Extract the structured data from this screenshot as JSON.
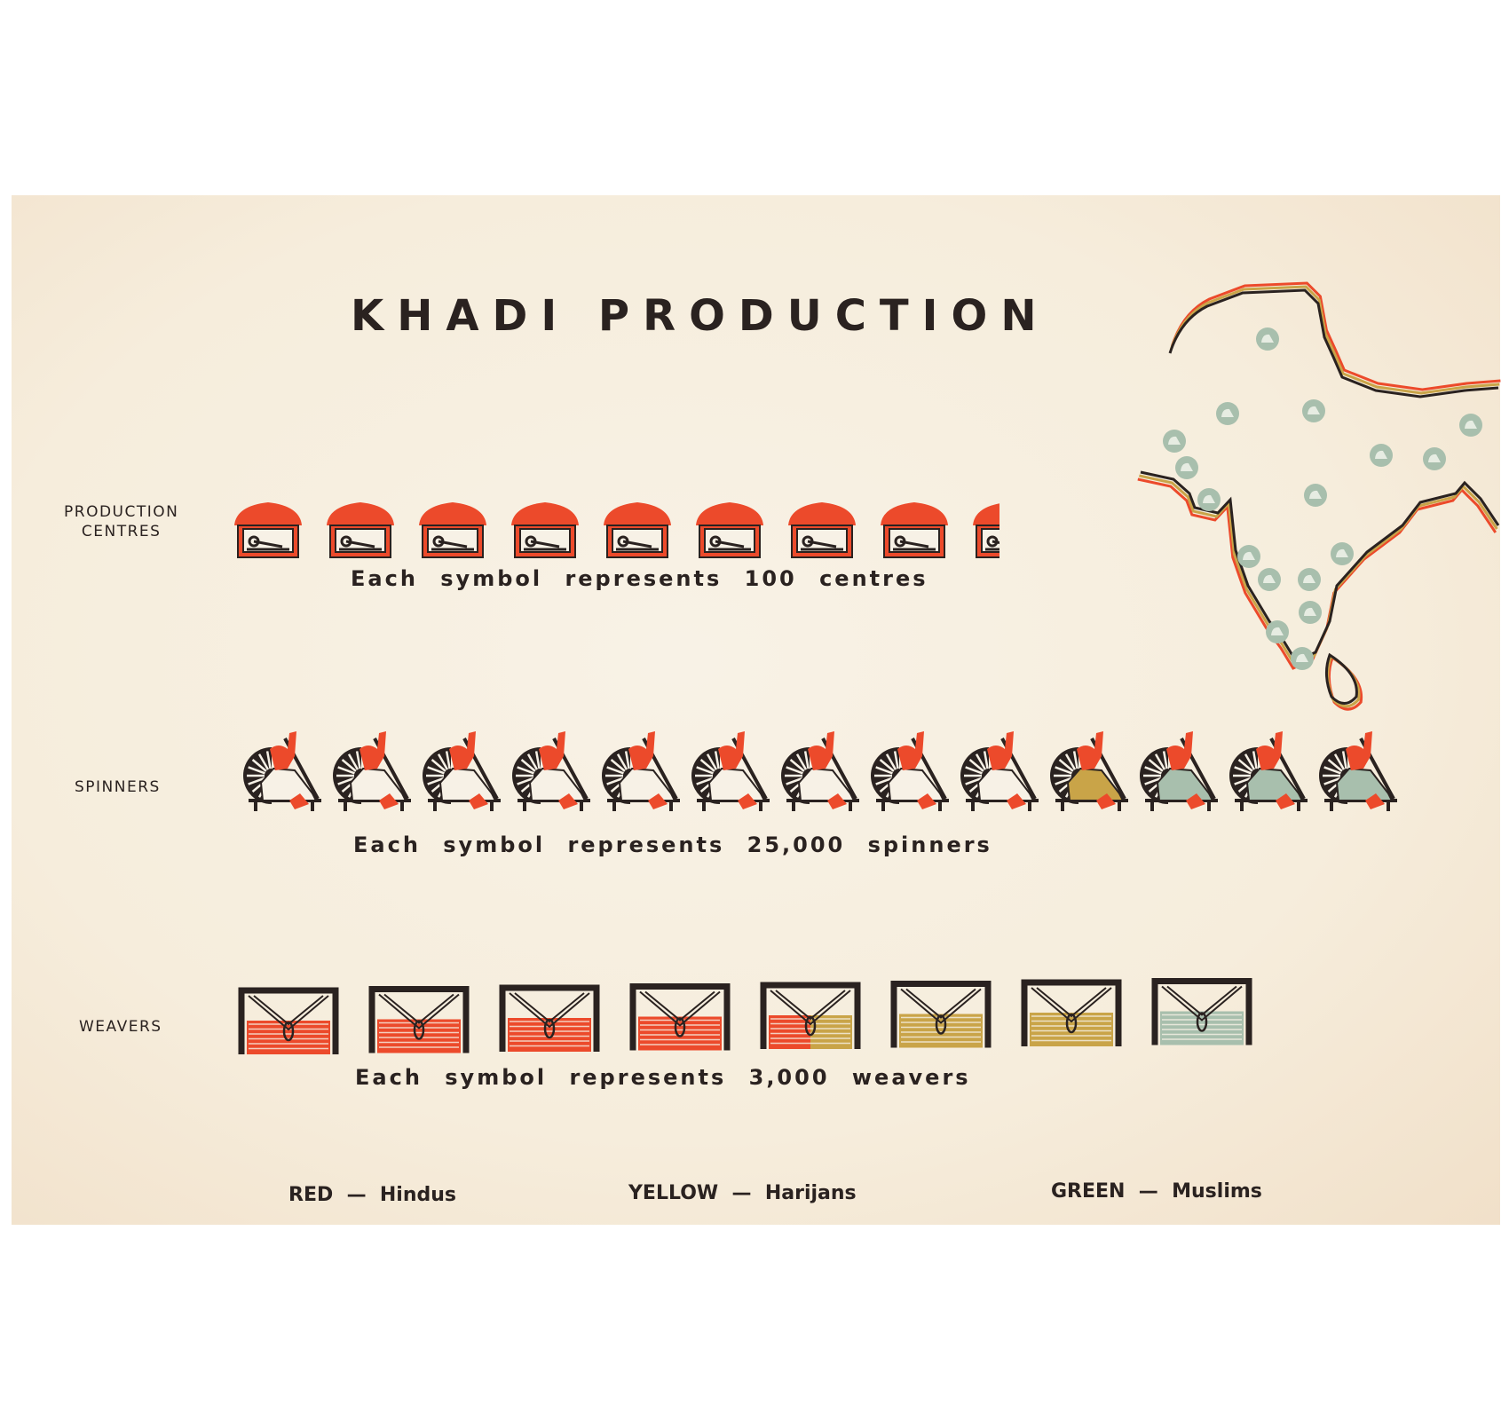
{
  "title": "KHADI PRODUCTION",
  "colors": {
    "red": "#ec4a2b",
    "yellow": "#c9a448",
    "green": "#a8bfad",
    "black": "#2a2220",
    "paper": "#f6eedf"
  },
  "legend": [
    {
      "color_word": "RED",
      "dash": "—",
      "group": "Hindus",
      "color": "#ec4a2b"
    },
    {
      "color_word": "YELLOW",
      "dash": "—",
      "group": "Harijans",
      "color": "#c9a448"
    },
    {
      "color_word": "GREEN",
      "dash": "—",
      "group": "Muslims",
      "color": "#a8bfad"
    }
  ],
  "chart_data": {
    "type": "bar",
    "subtype": "pictogram (isotype)",
    "title": "KHADI PRODUCTION",
    "categories": [
      "PRODUCTION CENTRES",
      "SPINNERS",
      "WEAVERS"
    ],
    "rows": [
      {
        "label_lines": [
          "PRODUCTION",
          "CENTRES"
        ],
        "icon": "production-centre-hut-icon",
        "caption": "Each symbol represents 100 centres",
        "unit_value": 100,
        "segments": [
          {
            "group": "Hindus",
            "symbols": 8.4
          }
        ],
        "total": 840
      },
      {
        "label_lines": [
          "SPINNERS"
        ],
        "icon": "spinning-wheel-spinner-icon",
        "caption": "Each symbol represents 25,000 spinners",
        "unit_value": 25000,
        "segments": [
          {
            "group": "Hindus",
            "symbols": 9
          },
          {
            "group": "Harijans",
            "symbols": 1
          },
          {
            "group": "Muslims",
            "symbols": 3
          }
        ],
        "total": 325000
      },
      {
        "label_lines": [
          "WEAVERS"
        ],
        "icon": "loom-weaver-icon",
        "caption": "Each symbol represents 3,000 weavers",
        "unit_value": 3000,
        "segments": [
          {
            "group": "Hindus",
            "symbols": 4.5
          },
          {
            "group": "Harijans",
            "symbols": 2.5
          },
          {
            "group": "Muslims",
            "symbols": 1
          }
        ],
        "total": 24000
      }
    ],
    "series": [
      {
        "name": "Hindus",
        "values": [
          840,
          225000,
          13500
        ]
      },
      {
        "name": "Harijans",
        "values": [
          0,
          25000,
          7500
        ]
      },
      {
        "name": "Muslims",
        "values": [
          0,
          75000,
          3000
        ]
      }
    ],
    "inset": "map of India with green spinning-wheel markers",
    "grid": false,
    "legend_position": "bottom"
  }
}
